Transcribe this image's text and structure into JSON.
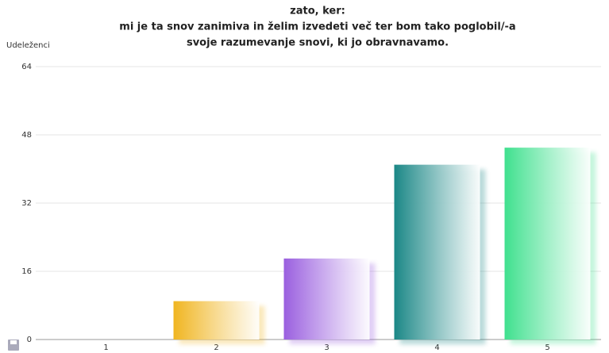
{
  "chart_data": {
    "type": "bar",
    "title": [
      "zato, ker:",
      "mi je ta snov zanimiva in želim izvedeti več ter bom tako poglobil/-a",
      "svoje razumevanje snovi, ki jo obravnavamo."
    ],
    "ylabel": "Udeleženci",
    "categories": [
      "1",
      "2",
      "3",
      "4",
      "5"
    ],
    "values": [
      0,
      9,
      19,
      41,
      45
    ],
    "colors": [
      "#6aa0e0",
      "#f0b520",
      "#9a5fdf",
      "#1a8786",
      "#3fe08e"
    ],
    "ylim": [
      0,
      64
    ],
    "yticks": [
      0,
      16,
      32,
      48,
      64
    ],
    "grid": true
  }
}
